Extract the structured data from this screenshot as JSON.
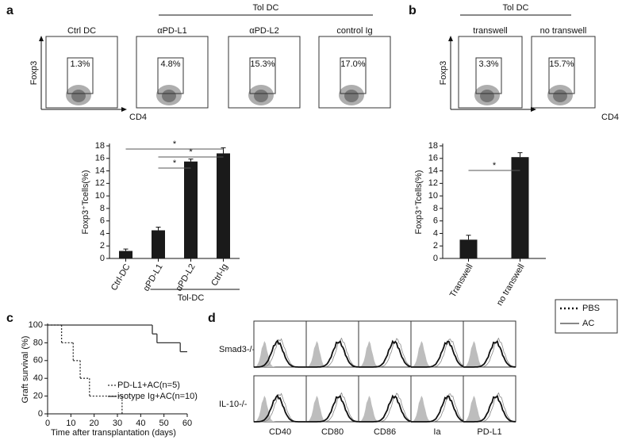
{
  "figure": {
    "panel_letters": [
      "a",
      "b",
      "c",
      "d"
    ],
    "flow_a": {
      "header": "Tol DC",
      "axis_y": "Foxp3",
      "axis_x": "CD4",
      "plots": [
        {
          "label": "Ctrl DC",
          "percent": "1.3%"
        },
        {
          "label": "αPD-L1",
          "percent": "4.8%"
        },
        {
          "label": "αPD-L2",
          "percent": "15.3%"
        },
        {
          "label": "control Ig",
          "percent": "17.0%"
        }
      ]
    },
    "flow_b": {
      "header": "Tol DC",
      "axis_y": "Foxp3",
      "axis_x": "CD4",
      "plots": [
        {
          "label": "transwell",
          "percent": "3.3%"
        },
        {
          "label": "no transwell",
          "percent": "15.7%"
        }
      ]
    },
    "histograms": {
      "legend": [
        "PBS",
        "AC"
      ],
      "rows": [
        "Smad3-/-",
        "IL-10-/-"
      ],
      "columns": [
        "CD40",
        "CD80",
        "CD86",
        "Ia",
        "PD-L1"
      ]
    }
  },
  "chart_data": [
    {
      "type": "bar",
      "ylabel": "Foxp3⁺Tcells(%)",
      "categories": [
        "Ctrl-DC",
        "αPD-L1",
        "αPD-L2",
        "Ctrl-Ig"
      ],
      "values": [
        1.2,
        4.5,
        15.5,
        16.8
      ],
      "errors": [
        0.3,
        0.5,
        0.4,
        0.9
      ],
      "color": "#1a1a1a",
      "ylim": [
        0,
        18
      ],
      "yticks": [
        0,
        2,
        4,
        6,
        8,
        10,
        12,
        14,
        16,
        18
      ],
      "group_label": "Tol-DC",
      "significance": [
        "*",
        "*",
        "*"
      ]
    },
    {
      "type": "bar",
      "ylabel": "Foxp3⁺Tcells(%)",
      "categories": [
        "Transwell",
        "no transwell"
      ],
      "values": [
        3,
        16.2
      ],
      "errors": [
        0.7,
        0.7
      ],
      "color": "#1a1a1a",
      "ylim": [
        0,
        18
      ],
      "yticks": [
        0,
        2,
        4,
        6,
        8,
        10,
        12,
        14,
        16,
        18
      ],
      "significance": [
        "*"
      ]
    },
    {
      "type": "step",
      "ylabel": "Graft survival (%)",
      "xlabel": "Time after transplantation (days)",
      "xlim": [
        0,
        60
      ],
      "xticks": [
        0,
        10,
        20,
        30,
        40,
        50,
        60
      ],
      "ylim": [
        0,
        100
      ],
      "yticks": [
        0,
        20,
        40,
        60,
        80,
        100
      ],
      "series": [
        {
          "name": "PD-L1+AC(n=5)",
          "color": "#333333",
          "dashed": true,
          "x": [
            0,
            6,
            11,
            14,
            18,
            32
          ],
          "values": [
            100,
            80,
            60,
            40,
            20,
            0
          ]
        },
        {
          "name": "isotype Ig+AC(n=10)",
          "color": "#333333",
          "dashed": false,
          "x": [
            0,
            45,
            47,
            57,
            60
          ],
          "values": [
            100,
            90,
            80,
            70,
            70
          ]
        }
      ]
    }
  ]
}
